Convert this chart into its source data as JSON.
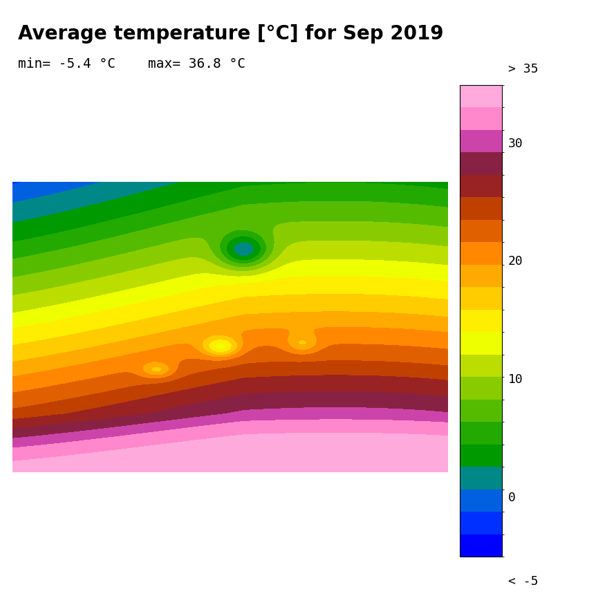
{
  "title": "Average temperature [°C] for Sep 2019",
  "min_label": "min= -5.4 °C",
  "max_label": "max= 36.8 °C",
  "colorbar_ticks": [
    0,
    10,
    20,
    30
  ],
  "colorbar_label_above": "> 35",
  "colorbar_label_below": "< -5",
  "vmin": -5,
  "vmax": 35,
  "title_fontsize": 20,
  "subtitle_fontsize": 14,
  "tick_fontsize": 13,
  "background_color": "#ffffff",
  "colorbar_colors": [
    "#0000ff",
    "#0030ff",
    "#0060e0",
    "#008888",
    "#009900",
    "#22aa00",
    "#55bb00",
    "#88cc00",
    "#bbdd00",
    "#eeff00",
    "#ffee00",
    "#ffcc00",
    "#ffaa00",
    "#ff8800",
    "#e06000",
    "#c04000",
    "#992222",
    "#882244",
    "#cc44aa",
    "#ff88cc",
    "#ffaadd"
  ],
  "colorbar_bounds": [
    -5,
    -4,
    -2,
    0,
    2,
    4,
    6,
    8,
    10,
    12,
    14,
    16,
    18,
    20,
    22,
    24,
    26,
    28,
    30,
    32,
    35,
    40
  ]
}
